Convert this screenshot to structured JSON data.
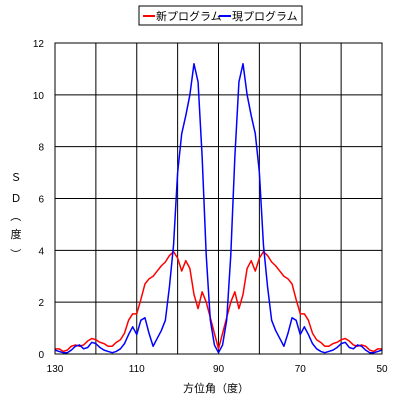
{
  "chart_data": {
    "type": "line",
    "title": "",
    "xlabel": "方位角（度）",
    "ylabel_chars": [
      "Ｓ",
      "Ｄ",
      "（",
      "度",
      "）"
    ],
    "x_reversed": true,
    "xlim": [
      130,
      50
    ],
    "ylim": [
      0,
      12
    ],
    "x_ticks": [
      130,
      110,
      90,
      70,
      50
    ],
    "x_tick_labels": [
      "130",
      "110",
      "90",
      "70",
      "50"
    ],
    "x_gridlines": [
      130,
      120,
      110,
      100,
      90,
      80,
      70,
      60,
      50
    ],
    "y_ticks": [
      0,
      2,
      4,
      6,
      8,
      10,
      12
    ],
    "y_tick_labels": [
      "0",
      "2",
      "4",
      "6",
      "8",
      "10",
      "12"
    ],
    "grid": true,
    "legend_position": "top",
    "series": [
      {
        "name": "新プログラム",
        "color": "#ff0000",
        "x": [
          130,
          129,
          128,
          127,
          126,
          125,
          124,
          123,
          122,
          121,
          120,
          119,
          118,
          117,
          116,
          115,
          114,
          113,
          112,
          111,
          110,
          109,
          108,
          107,
          106,
          105,
          104,
          103,
          102,
          101,
          100,
          99,
          98,
          97,
          96,
          95,
          94,
          93,
          92,
          91,
          90,
          89,
          88,
          87,
          86,
          85,
          84,
          83,
          82,
          81,
          80,
          79,
          78,
          77,
          76,
          75,
          74,
          73,
          72,
          71,
          70,
          69,
          68,
          67,
          66,
          65,
          64,
          63,
          62,
          61,
          60,
          59,
          58,
          57,
          56,
          55,
          54,
          53,
          52,
          51,
          50
        ],
        "y": [
          0.2,
          0.2,
          0.1,
          0.15,
          0.3,
          0.35,
          0.3,
          0.35,
          0.5,
          0.6,
          0.55,
          0.45,
          0.4,
          0.3,
          0.3,
          0.45,
          0.55,
          0.8,
          1.3,
          1.55,
          1.55,
          2.1,
          2.7,
          2.9,
          3.0,
          3.2,
          3.4,
          3.55,
          3.8,
          3.95,
          3.7,
          3.2,
          3.6,
          3.3,
          2.3,
          1.75,
          2.4,
          2.0,
          1.4,
          0.8,
          0.2,
          0.8,
          1.4,
          2.0,
          2.4,
          1.75,
          2.3,
          3.3,
          3.6,
          3.2,
          3.7,
          3.95,
          3.8,
          3.55,
          3.4,
          3.2,
          3.0,
          2.9,
          2.7,
          2.1,
          1.55,
          1.55,
          1.3,
          0.8,
          0.55,
          0.45,
          0.3,
          0.3,
          0.4,
          0.45,
          0.55,
          0.6,
          0.5,
          0.35,
          0.3,
          0.35,
          0.3,
          0.15,
          0.1,
          0.2,
          0.2
        ]
      },
      {
        "name": "現プログラム",
        "color": "#0000ff",
        "x": [
          130,
          129,
          128,
          127,
          126,
          125,
          124,
          123,
          122,
          121,
          120,
          119,
          118,
          117,
          116,
          115,
          114,
          113,
          112,
          111,
          110,
          109,
          108,
          107,
          106,
          105,
          104,
          103,
          102,
          101,
          100,
          99,
          98,
          97,
          96,
          95,
          94,
          93,
          92,
          91,
          90,
          89,
          88,
          87,
          86,
          85,
          84,
          83,
          82,
          81,
          80,
          79,
          78,
          77,
          76,
          75,
          74,
          73,
          72,
          71,
          70,
          69,
          68,
          67,
          66,
          65,
          64,
          63,
          62,
          61,
          60,
          59,
          58,
          57,
          56,
          55,
          54,
          53,
          52,
          51,
          50
        ],
        "y": [
          0.15,
          0.1,
          0.05,
          0.05,
          0.15,
          0.3,
          0.35,
          0.2,
          0.25,
          0.45,
          0.4,
          0.25,
          0.15,
          0.1,
          0.05,
          0.1,
          0.2,
          0.4,
          0.75,
          1.05,
          0.75,
          1.3,
          1.4,
          0.8,
          0.3,
          0.6,
          0.9,
          1.3,
          2.6,
          4.2,
          7.0,
          8.5,
          9.2,
          10.0,
          11.2,
          10.5,
          7.6,
          3.8,
          1.3,
          0.35,
          0.05,
          0.35,
          1.3,
          3.8,
          7.6,
          10.5,
          11.2,
          10.0,
          9.2,
          8.5,
          7.0,
          4.2,
          2.6,
          1.3,
          0.9,
          0.6,
          0.3,
          0.8,
          1.4,
          1.3,
          0.75,
          1.05,
          0.75,
          0.4,
          0.2,
          0.1,
          0.05,
          0.1,
          0.15,
          0.25,
          0.4,
          0.45,
          0.25,
          0.2,
          0.35,
          0.3,
          0.15,
          0.05,
          0.05,
          0.1,
          0.15
        ]
      }
    ]
  }
}
